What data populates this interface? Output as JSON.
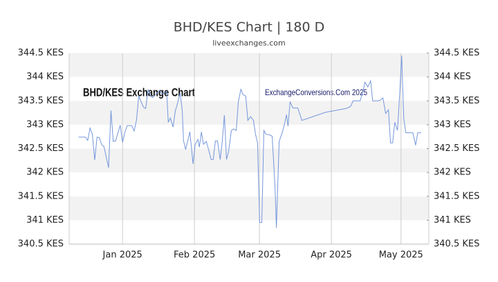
{
  "chart_data": {
    "type": "line",
    "title": "BHD/KES Chart | 180 D",
    "subtitle": "liveexchanges.com",
    "annotations": [
      "BHD/KES Exchange Chart",
      "ExchangeConversions.Com 2025"
    ],
    "color": "#7496dc",
    "grid": true,
    "xlim": [
      -23,
      132
    ],
    "xticks": [
      {
        "value": 0,
        "label": "Jan 2025"
      },
      {
        "value": 31,
        "label": "Feb 2025"
      },
      {
        "value": 59,
        "label": "Mar 2025"
      },
      {
        "value": 90,
        "label": "Apr 2025"
      },
      {
        "value": 120,
        "label": "May 2025"
      }
    ],
    "ylim": [
      340.5,
      344.5
    ],
    "yticks": [
      {
        "value": 340.5,
        "label": "340.5 KES"
      },
      {
        "value": 341,
        "label": "341 KES"
      },
      {
        "value": 341.5,
        "label": "341.5 KES"
      },
      {
        "value": 342,
        "label": "342 KES"
      },
      {
        "value": 342.5,
        "label": "342.5 KES"
      },
      {
        "value": 343,
        "label": "343 KES"
      },
      {
        "value": 343.5,
        "label": "343.5 KES"
      },
      {
        "value": 344,
        "label": "344 KES"
      },
      {
        "value": 344.5,
        "label": "344.5 KES"
      }
    ],
    "x": [
      -19,
      -16,
      -15,
      -14,
      -13,
      -12,
      -11,
      -10,
      -9,
      -8,
      -7,
      -6,
      -5,
      -4,
      -3,
      -1,
      0,
      1,
      2,
      4,
      5,
      6,
      7,
      8,
      9,
      10,
      11,
      12,
      13,
      15,
      16,
      17,
      19,
      19.7,
      20.6,
      21.8,
      22.7,
      23.9,
      24.8,
      25.7,
      26.3,
      27.2,
      28.1,
      29.0,
      30.4,
      31.3,
      32.5,
      33.1,
      34.0,
      34.9,
      36.1,
      37.3,
      38.2,
      39.1,
      40.0,
      40.9,
      42.1,
      43.0,
      43.9,
      44.8,
      45.7,
      46.9,
      47.8,
      49.0,
      49.9,
      51.0,
      51.9,
      53.1,
      54.0,
      55.2,
      56.4,
      57.3,
      58.2,
      59.1,
      60.0,
      60.9,
      61.8,
      63.3,
      64.5,
      65.7,
      66.3,
      67.5,
      69.0,
      69.9,
      70.7,
      71.3,
      72.2,
      73.4,
      74.3,
      75.5,
      77.3,
      87.5,
      96.4,
      98.2,
      99.4,
      102.4,
      103.6,
      104.5,
      105.7,
      106.9,
      107.8,
      109.9,
      111.0,
      112.2,
      113.4,
      114.6,
      115.5,
      116.4,
      117.3,
      118.5,
      119.4,
      120.3,
      121.2,
      122.1,
      123.6,
      125.1,
      126.3,
      127.2,
      128.7
    ],
    "values": [
      342.74,
      342.74,
      342.67,
      342.93,
      342.8,
      342.26,
      342.74,
      342.73,
      342.58,
      342.54,
      342.32,
      342.1,
      343.3,
      342.65,
      342.66,
      342.99,
      342.63,
      342.84,
      342.98,
      342.98,
      342.87,
      343.09,
      343.6,
      343.48,
      343.37,
      343.34,
      343.74,
      343.6,
      343.57,
      343.67,
      343.72,
      343.64,
      343.7,
      343.05,
      343.14,
      342.95,
      343.28,
      343.48,
      343.67,
      343.31,
      342.66,
      342.48,
      342.66,
      342.85,
      342.18,
      342.59,
      342.69,
      342.53,
      342.85,
      342.59,
      342.65,
      342.44,
      342.27,
      342.27,
      342.66,
      342.66,
      342.27,
      342.66,
      343.2,
      342.27,
      342.44,
      342.88,
      342.91,
      342.88,
      343.48,
      343.74,
      343.63,
      343.6,
      343.09,
      343.17,
      343.09,
      342.8,
      342.62,
      340.95,
      340.95,
      342.88,
      342.8,
      342.79,
      342.76,
      341.71,
      340.84,
      342.65,
      342.86,
      343.04,
      343.21,
      342.97,
      343.48,
      343.35,
      343.35,
      343.35,
      343.09,
      343.26,
      343.34,
      343.38,
      343.5,
      343.5,
      343.7,
      343.89,
      343.79,
      343.92,
      343.5,
      343.5,
      343.51,
      343.56,
      343.24,
      343.31,
      342.62,
      342.62,
      343.05,
      342.88,
      343.6,
      344.45,
      343.12,
      342.83,
      342.83,
      342.83,
      342.57,
      342.83,
      342.83
    ]
  }
}
